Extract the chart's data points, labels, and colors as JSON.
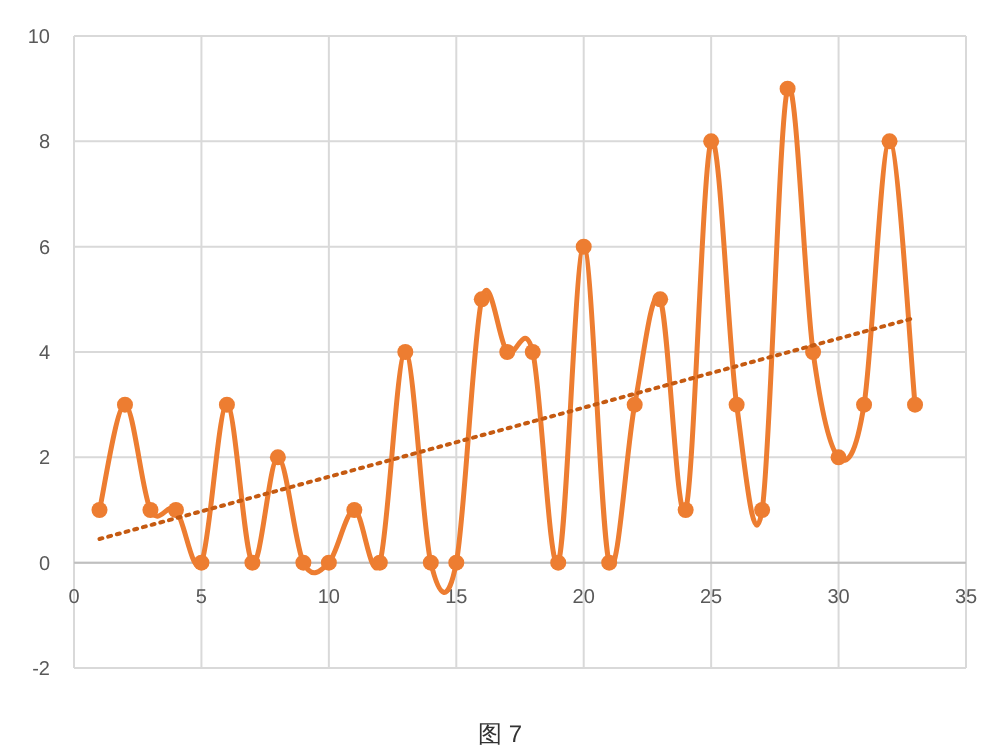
{
  "chart_data": {
    "type": "line",
    "annotations": [
      "图 7"
    ],
    "x": [
      1,
      2,
      3,
      4,
      5,
      6,
      7,
      8,
      9,
      10,
      11,
      12,
      13,
      14,
      15,
      16,
      17,
      18,
      19,
      20,
      21,
      22,
      23,
      24,
      25,
      26,
      27,
      28,
      29,
      30,
      31,
      32,
      33
    ],
    "series": [
      {
        "color": "#ed7d31",
        "marker": "circle",
        "line_style": "solid",
        "values": [
          1,
          3,
          1,
          1,
          0,
          3,
          0,
          2,
          0,
          0,
          1,
          0,
          4,
          0,
          0,
          5,
          4,
          4,
          0,
          6,
          0,
          3,
          5,
          1,
          8,
          3,
          1,
          9,
          4,
          2,
          3,
          8,
          3
        ]
      },
      {
        "type": "line",
        "color": "#c55a11",
        "marker": "none",
        "line_style": "dotted",
        "x": [
          1,
          33
        ],
        "values": [
          0.45,
          4.65
        ]
      }
    ],
    "xlim": [
      0,
      35
    ],
    "xticks": [
      0,
      5,
      10,
      15,
      20,
      25,
      30,
      35
    ],
    "ylim": [
      -2,
      10
    ],
    "yticks": [
      -2,
      0,
      2,
      4,
      6,
      8,
      10
    ],
    "grid": true
  }
}
